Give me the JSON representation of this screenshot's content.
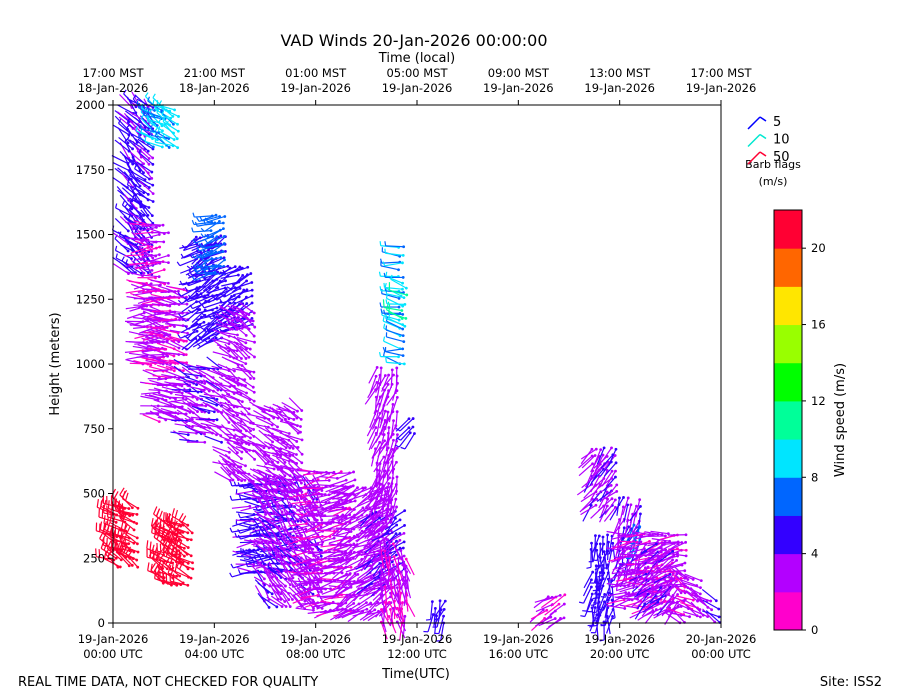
{
  "chart_data": {
    "type": "wind-barb-profile",
    "title": "VAD Winds 20-Jan-2026 00:00:00",
    "top_axis_label": "Time (local)",
    "xlabel": "Time(UTC)",
    "ylabel": "Height (meters)",
    "x_range_hours_utc": [
      0,
      24
    ],
    "ylim": [
      0,
      2000
    ],
    "y_ticks": [
      0,
      250,
      500,
      750,
      1000,
      1250,
      1500,
      1750,
      2000
    ],
    "bottom_ticks": [
      {
        "hour": 0,
        "line1": "19-Jan-2026",
        "line2": "00:00 UTC"
      },
      {
        "hour": 4,
        "line1": "19-Jan-2026",
        "line2": "04:00 UTC"
      },
      {
        "hour": 8,
        "line1": "19-Jan-2026",
        "line2": "08:00 UTC"
      },
      {
        "hour": 12,
        "line1": "19-Jan-2026",
        "line2": "12:00 UTC"
      },
      {
        "hour": 16,
        "line1": "19-Jan-2026",
        "line2": "16:00 UTC"
      },
      {
        "hour": 20,
        "line1": "19-Jan-2026",
        "line2": "20:00 UTC"
      },
      {
        "hour": 24,
        "line1": "20-Jan-2026",
        "line2": "00:00 UTC"
      }
    ],
    "top_ticks": [
      {
        "hour": 0,
        "line1": "17:00 MST",
        "line2": "18-Jan-2026"
      },
      {
        "hour": 4,
        "line1": "21:00 MST",
        "line2": "18-Jan-2026"
      },
      {
        "hour": 8,
        "line1": "01:00 MST",
        "line2": "19-Jan-2026"
      },
      {
        "hour": 12,
        "line1": "05:00 MST",
        "line2": "19-Jan-2026"
      },
      {
        "hour": 16,
        "line1": "09:00 MST",
        "line2": "19-Jan-2026"
      },
      {
        "hour": 20,
        "line1": "13:00 MST",
        "line2": "19-Jan-2026"
      },
      {
        "hour": 24,
        "line1": "17:00 MST",
        "line2": "19-Jan-2026"
      }
    ],
    "barb_legend": {
      "items": [
        {
          "label": "5",
          "color": "#0000ff"
        },
        {
          "label": "10",
          "color": "#00e8d0"
        },
        {
          "label": "50",
          "color": "#ff0033"
        }
      ],
      "title": "Barb flags",
      "unit": "(m/s)"
    },
    "colorbar": {
      "label": "Wind speed (m/s)",
      "min": 0,
      "max": 22,
      "ticks": [
        0,
        4,
        8,
        12,
        16,
        20
      ],
      "colors": [
        "#ff00cc",
        "#b300ff",
        "#3300ff",
        "#0066ff",
        "#00e5ff",
        "#00ff99",
        "#00ff00",
        "#99ff00",
        "#ffe600",
        "#ff6600",
        "#ff0033"
      ]
    },
    "barb_clusters": [
      {
        "t0": 0.0,
        "t1": 1.1,
        "h0": 220,
        "h1": 460,
        "speed": 21,
        "dir": 300
      },
      {
        "t0": 0.6,
        "t1": 1.6,
        "h0": 1350,
        "h1": 2000,
        "speed": 4.5,
        "dir": 315
      },
      {
        "t0": 1.6,
        "t1": 2.6,
        "h0": 1840,
        "h1": 2000,
        "speed": 8,
        "dir": 300
      },
      {
        "t0": 1.2,
        "t1": 2.2,
        "h0": 1000,
        "h1": 1550,
        "speed": 2.5,
        "dir": 270
      },
      {
        "t0": 1.8,
        "t1": 3.0,
        "h0": 780,
        "h1": 1300,
        "speed": 2.5,
        "dir": 280
      },
      {
        "t0": 2.0,
        "t1": 3.2,
        "h0": 150,
        "h1": 380,
        "speed": 21,
        "dir": 300
      },
      {
        "t0": 3.0,
        "t1": 4.3,
        "h0": 700,
        "h1": 1000,
        "speed": 3.5,
        "dir": 290
      },
      {
        "t0": 3.3,
        "t1": 4.5,
        "h0": 1100,
        "h1": 1500,
        "speed": 5,
        "dir": 240
      },
      {
        "t0": 3.9,
        "t1": 4.5,
        "h0": 1350,
        "h1": 1600,
        "speed": 7,
        "dir": 250
      },
      {
        "t0": 4.5,
        "t1": 5.6,
        "h0": 1150,
        "h1": 1380,
        "speed": 5,
        "dir": 240
      },
      {
        "t0": 4.6,
        "t1": 5.6,
        "h0": 550,
        "h1": 1200,
        "speed": 3,
        "dir": 300
      },
      {
        "t0": 5.4,
        "t1": 7.3,
        "h0": 200,
        "h1": 550,
        "speed": 4.5,
        "dir": 270
      },
      {
        "t0": 6.0,
        "t1": 8.3,
        "h0": 60,
        "h1": 520,
        "speed": 3.5,
        "dir": 320
      },
      {
        "t0": 6.0,
        "t1": 7.5,
        "h0": 480,
        "h1": 820,
        "speed": 3,
        "dir": 300
      },
      {
        "t0": 7.6,
        "t1": 9.6,
        "h0": 50,
        "h1": 600,
        "speed": 2.5,
        "dir": 260
      },
      {
        "t0": 9.2,
        "t1": 11.0,
        "h0": 50,
        "h1": 550,
        "speed": 3,
        "dir": 240
      },
      {
        "t0": 10.2,
        "t1": 11.6,
        "h0": 150,
        "h1": 450,
        "speed": 4,
        "dir": 230
      },
      {
        "t0": 10.4,
        "t1": 11.3,
        "h0": 450,
        "h1": 1000,
        "speed": 3,
        "dir": 200
      },
      {
        "t0": 10.6,
        "t1": 11.6,
        "h0": 0,
        "h1": 330,
        "speed": 2,
        "dir": 170
      },
      {
        "t0": 11.3,
        "t1": 11.6,
        "h0": 1000,
        "h1": 1460,
        "speed": 8,
        "dir": 280
      },
      {
        "t0": 11.4,
        "t1": 11.6,
        "h0": 1150,
        "h1": 1300,
        "speed": 10,
        "dir": 280
      },
      {
        "t0": 11.7,
        "t1": 12.0,
        "h0": 730,
        "h1": 800,
        "speed": 5,
        "dir": 210
      },
      {
        "t0": 12.6,
        "t1": 13.1,
        "h0": 0,
        "h1": 90,
        "speed": 5,
        "dir": 200
      },
      {
        "t0": 17.0,
        "t1": 17.9,
        "h0": 20,
        "h1": 120,
        "speed": 2.5,
        "dir": 240
      },
      {
        "t0": 18.9,
        "t1": 20.0,
        "h0": 450,
        "h1": 680,
        "speed": 3.5,
        "dir": 220
      },
      {
        "t0": 18.9,
        "t1": 19.8,
        "h0": 0,
        "h1": 350,
        "speed": 5,
        "dir": 190
      },
      {
        "t0": 20.0,
        "t1": 20.9,
        "h0": 200,
        "h1": 480,
        "speed": 4,
        "dir": 200
      },
      {
        "t0": 20.6,
        "t1": 20.9,
        "h0": 320,
        "h1": 400,
        "speed": 7,
        "dir": 190
      },
      {
        "t0": 20.2,
        "t1": 22.6,
        "h0": 60,
        "h1": 360,
        "speed": 2.5,
        "dir": 260
      },
      {
        "t0": 21.0,
        "t1": 22.4,
        "h0": 50,
        "h1": 320,
        "speed": 3.5,
        "dir": 230
      },
      {
        "t0": 22.4,
        "t1": 23.3,
        "h0": 0,
        "h1": 180,
        "speed": 2.5,
        "dir": 300
      },
      {
        "t0": 23.3,
        "t1": 24.0,
        "h0": 0,
        "h1": 100,
        "speed": 4,
        "dir": 300
      }
    ],
    "footer_left": "REAL TIME DATA, NOT CHECKED FOR QUALITY",
    "footer_right": "Site: ISS2"
  }
}
